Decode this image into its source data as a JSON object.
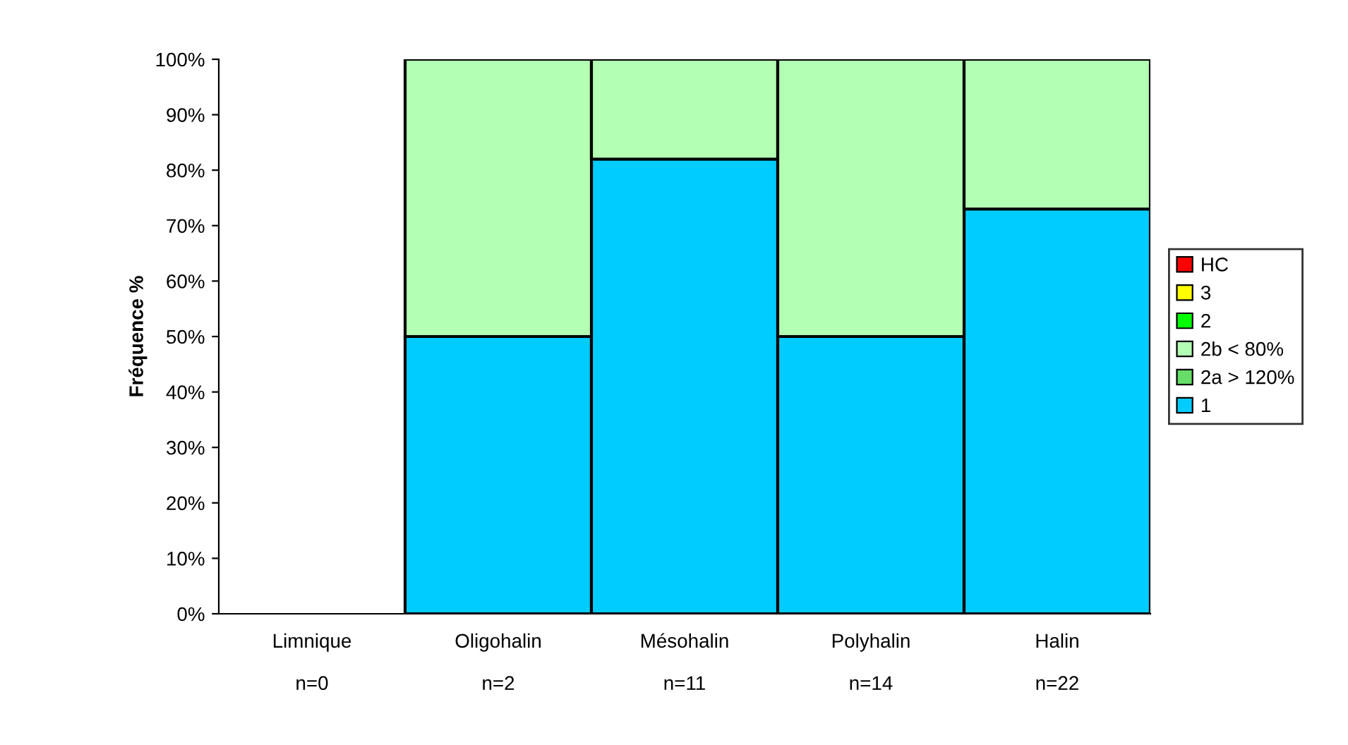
{
  "chart_data": {
    "type": "bar",
    "stacked": true,
    "ylabel": "Fréquence %",
    "categories": [
      "Limnique\n\nn=0",
      "Oligohalin\n\nn=2",
      "Mésohalin\n\nn=11",
      "Polyhalin\n\nn=14",
      "Halin\n\nn=22"
    ],
    "series": [
      {
        "name": "1",
        "color": "#00ccff",
        "values": [
          null,
          50,
          82,
          50,
          73
        ]
      },
      {
        "name": "2a > 120%",
        "color": "#66dd66",
        "values": [
          null,
          null,
          null,
          null,
          null
        ]
      },
      {
        "name": "2b < 80%",
        "color": "#b3ffb3",
        "values": [
          null,
          50,
          18,
          50,
          27
        ]
      },
      {
        "name": "2",
        "color": "#00ff00",
        "values": [
          null,
          null,
          null,
          null,
          null
        ]
      },
      {
        "name": "3",
        "color": "#ffff00",
        "values": [
          null,
          null,
          null,
          null,
          null
        ]
      },
      {
        "name": "HC",
        "color": "#ff0000",
        "values": [
          null,
          null,
          null,
          null,
          null
        ]
      }
    ],
    "ylim": [
      0,
      100
    ],
    "yticks": [
      {
        "value": 0,
        "label": "0%"
      },
      {
        "value": 10,
        "label": "10%"
      },
      {
        "value": 20,
        "label": "20%"
      },
      {
        "value": 30,
        "label": "30%"
      },
      {
        "value": 40,
        "label": "40%"
      },
      {
        "value": 50,
        "label": "50%"
      },
      {
        "value": 60,
        "label": "60%"
      },
      {
        "value": 70,
        "label": "70%"
      },
      {
        "value": 80,
        "label": "80%"
      },
      {
        "value": 90,
        "label": "90%"
      },
      {
        "value": 100,
        "label": "100%"
      }
    ],
    "grid": false,
    "legend": "right"
  }
}
